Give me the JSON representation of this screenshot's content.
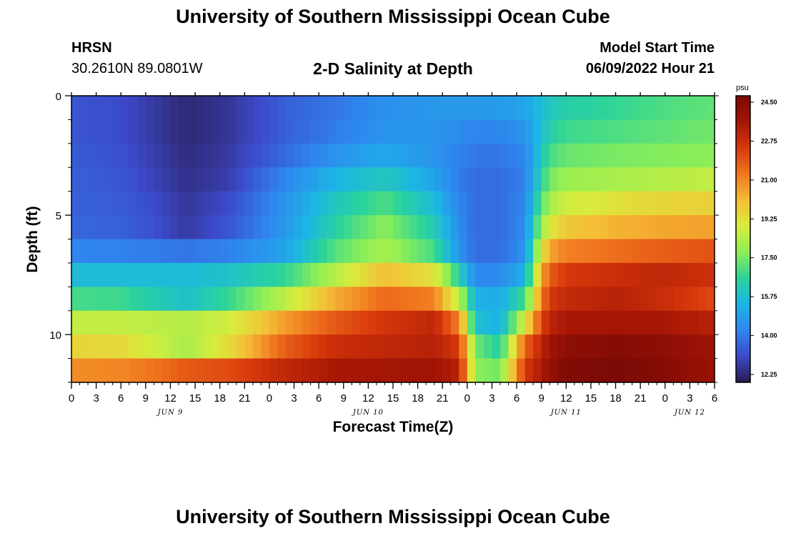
{
  "page": {
    "title": "University of Southern Mississippi Ocean Cube",
    "footer_title": "University of Southern Mississippi Ocean Cube",
    "station": "HRSN",
    "coords": "30.2610N  89.0801W",
    "subtitle": "2-D Salinity at Depth",
    "model_start_label": "Model Start Time",
    "model_start_value": "06/09/2022 Hour 21"
  },
  "chart_data": {
    "type": "heatmap",
    "title": "2-D Salinity at Depth",
    "xlabel": "Forecast Time(Z)",
    "ylabel": "Depth (ft)",
    "x_start": "06/09/2022 00Z",
    "x_tick_labels": [
      "0",
      "3",
      "6",
      "9",
      "12",
      "15",
      "18",
      "21",
      "0",
      "3",
      "6",
      "9",
      "12",
      "15",
      "18",
      "21",
      "0",
      "3",
      "6",
      "9",
      "12",
      "15",
      "18",
      "21",
      "0",
      "3",
      "6"
    ],
    "x_date_labels": [
      {
        "label": "JUN 9",
        "hour": 12
      },
      {
        "label": "JUN 10",
        "hour": 36
      },
      {
        "label": "JUN 11",
        "hour": 60
      },
      {
        "label": "JUN 12",
        "hour": 75
      }
    ],
    "y_tick_labels": [
      {
        "label": "0",
        "depth": 0
      },
      {
        "label": "5",
        "depth": 5
      },
      {
        "label": "10",
        "depth": 10
      }
    ],
    "ylim": [
      0,
      12
    ],
    "depth_levels_ft": [
      0,
      0.5,
      1.5,
      2.5,
      3.5,
      4.5,
      5.5,
      6.5,
      7.5,
      8.5,
      9.5,
      10.5,
      11.5
    ],
    "colorbar": {
      "unit": "psu",
      "ticks": [
        "24.50",
        "22.75",
        "21.00",
        "19.25",
        "17.50",
        "15.75",
        "14.00",
        "12.25"
      ],
      "range": [
        12.25,
        24.5
      ]
    },
    "salinity_keyframes": {
      "hours": [
        0,
        6,
        10,
        14,
        19,
        26,
        32,
        38,
        44,
        47,
        49,
        52,
        55,
        57,
        58,
        60,
        66,
        72,
        78
      ],
      "rows": [
        [
          13.6,
          13.4,
          13.0,
          12.7,
          12.9,
          13.8,
          14.2,
          14.7,
          15.0,
          15.1,
          15.0,
          15.2,
          15.4,
          15.8,
          16.0,
          16.3,
          16.7,
          17.0,
          17.2
        ],
        [
          13.6,
          13.4,
          13.0,
          12.6,
          12.9,
          13.8,
          14.2,
          14.7,
          14.9,
          14.9,
          14.9,
          15.0,
          15.2,
          15.8,
          16.2,
          16.5,
          16.8,
          17.1,
          17.3
        ],
        [
          13.6,
          13.4,
          13.0,
          12.6,
          12.9,
          13.8,
          14.3,
          14.8,
          14.8,
          14.6,
          14.5,
          14.5,
          14.8,
          15.9,
          16.5,
          16.9,
          17.1,
          17.3,
          17.5
        ],
        [
          13.7,
          13.5,
          13.1,
          12.7,
          13.0,
          14.0,
          14.8,
          15.3,
          14.8,
          14.4,
          14.2,
          14.2,
          14.5,
          16.2,
          17.0,
          17.4,
          17.6,
          17.7,
          17.8
        ],
        [
          13.8,
          13.6,
          13.2,
          12.8,
          13.1,
          14.5,
          15.6,
          16.2,
          15.2,
          14.3,
          14.0,
          14.0,
          14.4,
          16.6,
          17.5,
          18.0,
          18.2,
          18.4,
          18.6
        ],
        [
          13.8,
          13.7,
          13.4,
          12.9,
          13.4,
          14.8,
          16.2,
          17.1,
          15.8,
          14.5,
          14.0,
          14.0,
          14.5,
          17.2,
          18.1,
          18.8,
          19.2,
          19.5,
          19.6
        ],
        [
          13.9,
          13.8,
          13.5,
          13.0,
          13.6,
          14.9,
          16.6,
          17.8,
          16.4,
          14.6,
          14.0,
          14.0,
          14.6,
          18.0,
          19.0,
          19.8,
          20.2,
          20.4,
          20.5
        ],
        [
          14.5,
          14.4,
          14.3,
          14.2,
          14.4,
          15.2,
          17.2,
          18.2,
          17.0,
          14.8,
          14.0,
          14.0,
          14.8,
          19.0,
          20.4,
          21.0,
          21.3,
          21.6,
          21.8
        ],
        [
          15.8,
          15.8,
          15.8,
          15.8,
          16.0,
          16.8,
          18.4,
          20.0,
          19.2,
          16.5,
          14.5,
          14.6,
          15.5,
          20.3,
          21.6,
          22.3,
          22.6,
          22.8,
          22.5
        ],
        [
          17.0,
          16.9,
          16.4,
          16.0,
          16.8,
          18.5,
          20.3,
          21.4,
          21.0,
          18.5,
          15.5,
          15.4,
          17.0,
          21.0,
          22.3,
          22.7,
          23.0,
          22.6,
          22.0
        ],
        [
          18.6,
          18.6,
          18.5,
          18.4,
          18.8,
          20.6,
          21.7,
          22.4,
          22.8,
          21.0,
          16.0,
          15.5,
          19.0,
          22.0,
          22.9,
          23.3,
          23.4,
          23.3,
          23.0
        ],
        [
          19.5,
          19.4,
          18.8,
          18.2,
          19.3,
          21.6,
          22.6,
          22.8,
          23.0,
          22.3,
          17.5,
          16.5,
          21.5,
          22.8,
          23.5,
          24.0,
          24.2,
          24.0,
          23.5
        ],
        [
          20.8,
          20.9,
          21.2,
          21.7,
          21.9,
          22.8,
          23.3,
          23.4,
          23.5,
          23.0,
          17.8,
          17.5,
          22.3,
          23.2,
          23.8,
          24.3,
          24.5,
          24.2,
          23.6
        ]
      ]
    },
    "colors": {
      "frame": "#000000",
      "scale": [
        "#2a1a4e",
        "#3c49c8",
        "#2f86ee",
        "#1cb5e6",
        "#2bd39b",
        "#8fef55",
        "#d8ec3c",
        "#f5bd37",
        "#f0761e",
        "#d8380c",
        "#a41505",
        "#7a0a06"
      ]
    }
  }
}
